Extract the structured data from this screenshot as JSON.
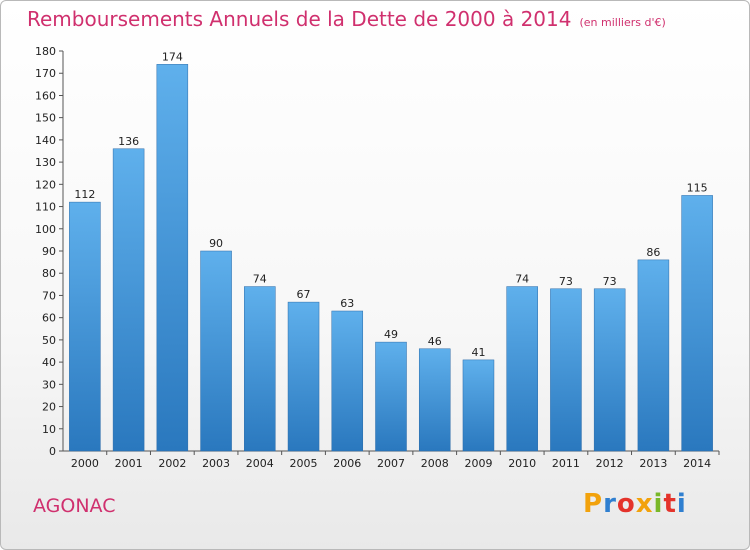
{
  "header": {
    "title": "Remboursements Annuels de la Dette de 2000 à 2014",
    "subtitle": "(en milliers d'€)"
  },
  "footer": {
    "commune": "AGONAC",
    "brand": "Proxiti"
  },
  "colors": {
    "accent": "#d0306e",
    "bar_top": "#5fb0ec",
    "bar_bottom": "#2a78be",
    "brand_letters": [
      "#f2a20c",
      "#2f7fd0",
      "#e4332b",
      "#f2a20c",
      "#79b829",
      "#e4332b",
      "#2f7fd0"
    ]
  },
  "chart_data": {
    "type": "bar",
    "categories": [
      "2000",
      "2001",
      "2002",
      "2003",
      "2004",
      "2005",
      "2006",
      "2007",
      "2008",
      "2009",
      "2010",
      "2011",
      "2012",
      "2013",
      "2014"
    ],
    "values": [
      112,
      136,
      174,
      90,
      74,
      67,
      63,
      49,
      46,
      41,
      74,
      73,
      73,
      86,
      115
    ],
    "ylim": [
      0,
      180
    ],
    "ytick_step": 10,
    "grid": false,
    "legend": "none"
  }
}
